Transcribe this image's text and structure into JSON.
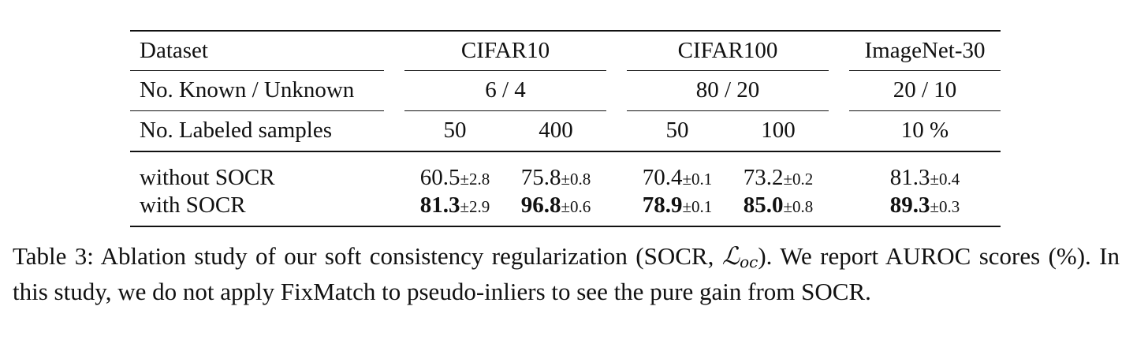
{
  "table": {
    "header": {
      "dataset_label": "Dataset",
      "datasets": [
        "CIFAR10",
        "CIFAR100",
        "ImageNet-30"
      ]
    },
    "known_unknown": {
      "label": "No. Known / Unknown",
      "values": [
        "6 / 4",
        "80 / 20",
        "20 / 10"
      ]
    },
    "labeled": {
      "label": "No. Labeled samples",
      "values": [
        "50",
        "400",
        "50",
        "100",
        "10 %"
      ]
    },
    "rows": [
      {
        "label": "without SOCR",
        "cells": [
          {
            "mean": "60.5",
            "std": "±2.8"
          },
          {
            "mean": "75.8",
            "std": "±0.8"
          },
          {
            "mean": "70.4",
            "std": "±0.1"
          },
          {
            "mean": "73.2",
            "std": "±0.2"
          },
          {
            "mean": "81.3",
            "std": "±0.4"
          }
        ]
      },
      {
        "label": "with SOCR",
        "cells": [
          {
            "mean": "81.3",
            "std": "±2.9"
          },
          {
            "mean": "96.8",
            "std": "±0.6"
          },
          {
            "mean": "78.9",
            "std": "±0.1"
          },
          {
            "mean": "85.0",
            "std": "±0.8"
          },
          {
            "mean": "89.3",
            "std": "±0.3"
          }
        ]
      }
    ]
  },
  "caption": {
    "part1": "Table 3: Ablation study of our soft consistency regularization (SOCR, ",
    "loss_symbol": "ℒ",
    "loss_sub": "oc",
    "part2": "). We report AUROC scores (%). In this study, we do not apply FixMatch to pseudo-inliers to see the pure gain from SOCR."
  }
}
